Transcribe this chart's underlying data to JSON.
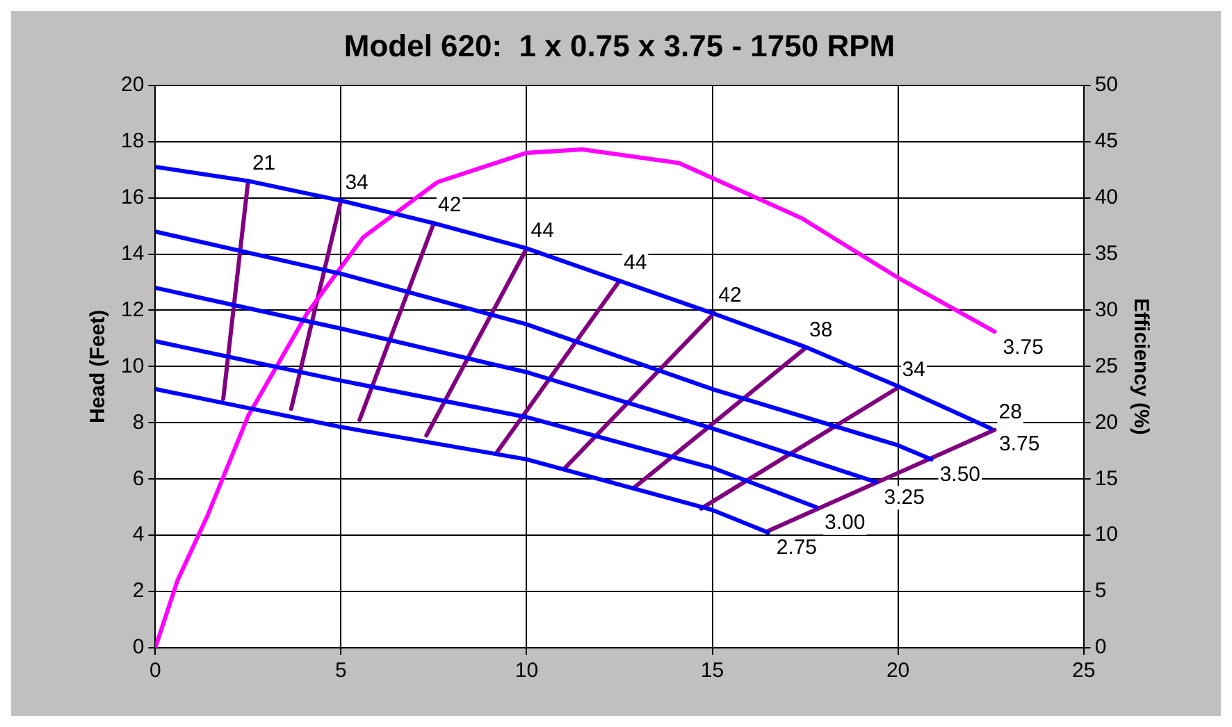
{
  "chart_data": {
    "type": "line",
    "title": "Model 620:  1 x 0.75 x 3.75 - 1750 RPM",
    "ylabel": "Head (Feet)",
    "y2label": "Efficiency (%)",
    "xlim": [
      0,
      25
    ],
    "xticks": [
      0,
      5,
      10,
      15,
      20,
      25
    ],
    "ylim": [
      0,
      20
    ],
    "yticks": [
      0,
      2,
      4,
      6,
      8,
      10,
      12,
      14,
      16,
      18,
      20
    ],
    "y2lim": [
      0,
      50
    ],
    "y2ticks": [
      0,
      5,
      10,
      15,
      20,
      25,
      30,
      35,
      40,
      45,
      50
    ],
    "annotations": [
      {
        "text": "21",
        "x": 2.5,
        "y": 16.6
      },
      {
        "text": "34",
        "x": 5,
        "y": 15.9
      },
      {
        "text": "42",
        "x": 7.5,
        "y": 15.1
      },
      {
        "text": "44",
        "x": 10,
        "y": 14.2
      },
      {
        "text": "44",
        "x": 12.5,
        "y": 13.05
      },
      {
        "text": "42",
        "x": 15.05,
        "y": 11.9
      },
      {
        "text": "38",
        "x": 17.5,
        "y": 10.65
      },
      {
        "text": "34",
        "x": 20,
        "y": 9.25
      },
      {
        "text": "28",
        "x": 22.6,
        "y": 7.75
      }
    ],
    "grid": true,
    "legend": false,
    "marker": "none",
    "line_style": "solid",
    "series": [
      {
        "name": "3.75",
        "color": "#0000ff",
        "x": [
          0,
          2.5,
          5,
          7.5,
          10,
          12.5,
          15,
          17.5,
          20,
          22.5
        ],
        "values": [
          17.1,
          16.6,
          15.9,
          15.1,
          14.2,
          13.05,
          11.9,
          10.7,
          9.3,
          7.8
        ]
      },
      {
        "name": "3.50",
        "color": "#0000ff",
        "x": [
          0,
          5,
          10,
          15,
          20,
          20.9
        ],
        "values": [
          14.8,
          13.3,
          11.5,
          9.2,
          7.2,
          6.7
        ]
      },
      {
        "name": "3.25",
        "color": "#0000ff",
        "x": [
          0,
          5,
          10,
          15,
          19.4
        ],
        "values": [
          12.8,
          11.35,
          9.8,
          7.8,
          5.9
        ]
      },
      {
        "name": "3.00",
        "color": "#0000ff",
        "x": [
          0,
          5,
          10,
          15,
          17.8
        ],
        "values": [
          10.9,
          9.5,
          8.2,
          6.4,
          5.0
        ]
      },
      {
        "name": "2.75",
        "color": "#0000ff",
        "x": [
          0,
          5,
          10,
          15,
          16.5
        ],
        "values": [
          9.2,
          7.85,
          6.7,
          4.9,
          4.1
        ]
      },
      {
        "name": "3.75",
        "color": "#ff00ff",
        "axis": "y2",
        "x": [
          0,
          0.6,
          1.4,
          2.5,
          4.1,
          5.6,
          7.6,
          10,
          11.5,
          14.1,
          17.4,
          20,
          22.6
        ],
        "values": [
          0,
          6,
          11.7,
          20.6,
          29.8,
          36.5,
          41.4,
          44,
          44.3,
          43.1,
          38.2,
          32.9,
          28.1
        ]
      },
      {
        "color": "#800080",
        "x": [
          2.5,
          1.83
        ],
        "values": [
          16.6,
          8.85
        ]
      },
      {
        "color": "#800080",
        "x": [
          5,
          3.66
        ],
        "values": [
          15.9,
          8.5
        ]
      },
      {
        "color": "#800080",
        "x": [
          7.5,
          5.5
        ],
        "values": [
          15.1,
          8.1
        ]
      },
      {
        "color": "#800080",
        "x": [
          10,
          7.3
        ],
        "values": [
          14.2,
          7.55
        ]
      },
      {
        "color": "#800080",
        "x": [
          12.5,
          9.2
        ],
        "values": [
          13.05,
          6.95
        ]
      },
      {
        "color": "#800080",
        "x": [
          15.05,
          11
        ],
        "values": [
          11.9,
          6.35
        ]
      },
      {
        "color": "#800080",
        "x": [
          17.5,
          12.9
        ],
        "values": [
          10.65,
          5.7
        ]
      },
      {
        "color": "#800080",
        "x": [
          20,
          14.7
        ],
        "values": [
          9.25,
          4.95
        ]
      },
      {
        "color": "#800080",
        "x": [
          22.6,
          16.5
        ],
        "values": [
          7.75,
          4.15
        ]
      }
    ]
  }
}
